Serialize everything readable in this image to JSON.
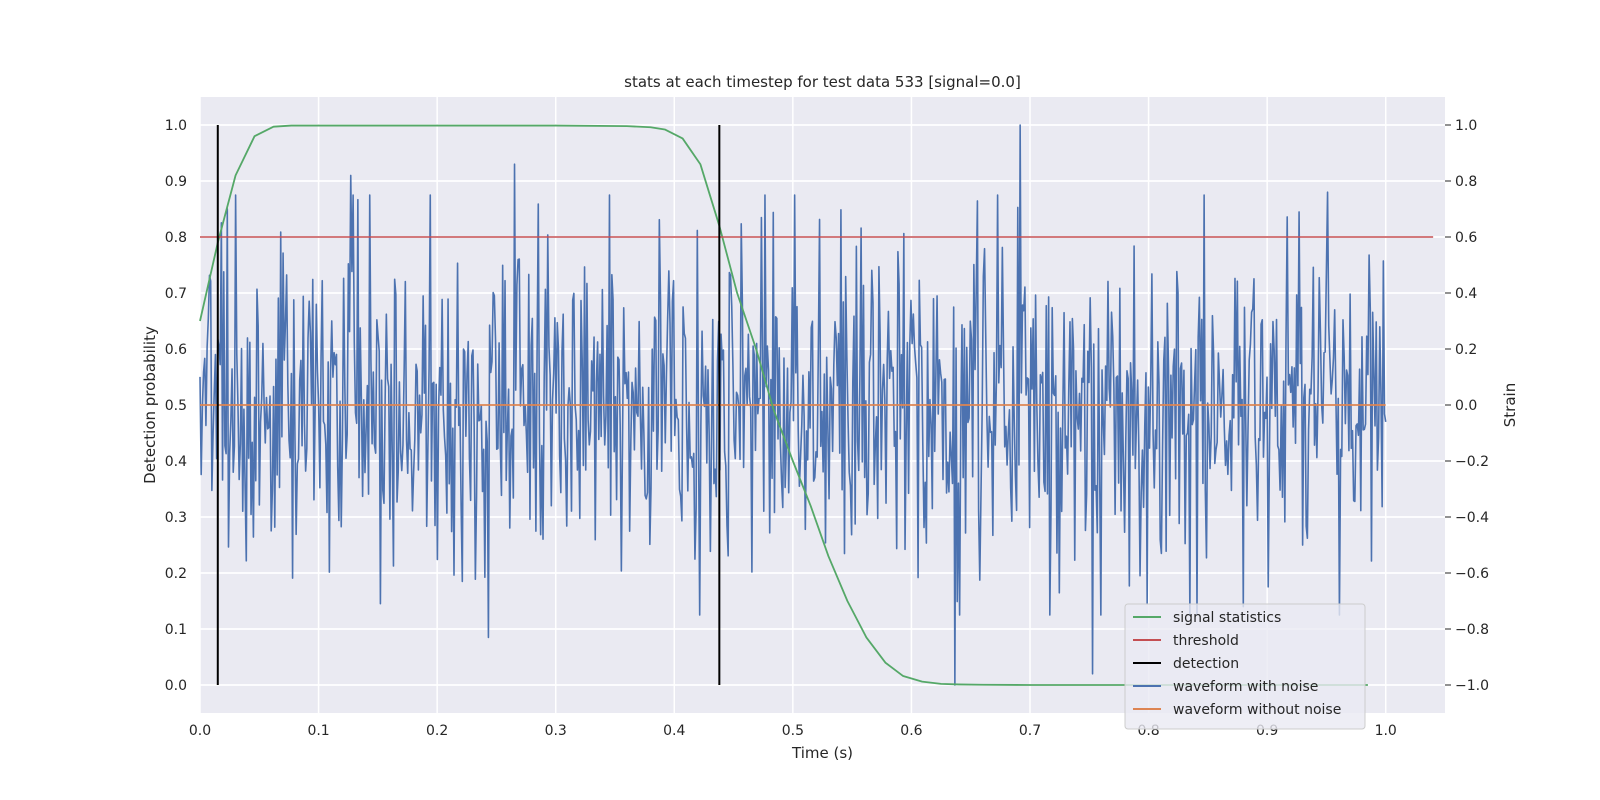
{
  "chart_data": {
    "type": "line",
    "title": "stats at each timestep for test data 533 [signal=0.0]",
    "xlabel": "Time (s)",
    "ylabel_left": "Detection probability",
    "ylabel_right": "Strain",
    "xlim": [
      0.0,
      1.05
    ],
    "ylim_left": [
      -0.05,
      1.05
    ],
    "ylim_right": [
      -1.1,
      1.1
    ],
    "x_ticks": [
      "0.0",
      "0.1",
      "0.2",
      "0.3",
      "0.4",
      "0.5",
      "0.6",
      "0.7",
      "0.8",
      "0.9",
      "1.0"
    ],
    "y_left_ticks": [
      "0.0",
      "0.1",
      "0.2",
      "0.3",
      "0.4",
      "0.5",
      "0.6",
      "0.7",
      "0.8",
      "0.9",
      "1.0"
    ],
    "y_right_ticks": [
      "−1.0",
      "−0.8",
      "−0.6",
      "−0.4",
      "−0.2",
      "0.0",
      "0.2",
      "0.4",
      "0.6",
      "0.8",
      "1.0"
    ],
    "grid": true,
    "legend_position": "lower-right",
    "series": [
      {
        "name": "signal statistics",
        "axis": "left",
        "color": "#55a868",
        "x": [
          0.0,
          0.015,
          0.03,
          0.046,
          0.062,
          0.077,
          0.1,
          0.2,
          0.3,
          0.36,
          0.38,
          0.392,
          0.407,
          0.422,
          0.438,
          0.453,
          0.469,
          0.484,
          0.5,
          0.515,
          0.53,
          0.546,
          0.562,
          0.578,
          0.593,
          0.609,
          0.625,
          0.64,
          0.66,
          0.7,
          0.8,
          0.9,
          0.985
        ],
        "y": [
          0.65,
          0.79,
          0.91,
          0.98,
          0.997,
          0.999,
          0.999,
          0.999,
          0.999,
          0.998,
          0.996,
          0.992,
          0.976,
          0.93,
          0.82,
          0.7,
          0.6,
          0.49,
          0.4,
          0.32,
          0.23,
          0.15,
          0.085,
          0.04,
          0.016,
          0.006,
          0.002,
          0.001,
          0.0005,
          0.0,
          0.0,
          0.0,
          0.0
        ]
      },
      {
        "name": "threshold",
        "axis": "left",
        "color": "#c44e52",
        "x": [
          0.0,
          1.04
        ],
        "y": [
          0.8,
          0.8
        ]
      },
      {
        "name": "detection",
        "axis": "left",
        "color": "#000000",
        "segments": [
          {
            "x": 0.015,
            "y0": 0.0,
            "y1": 1.0
          },
          {
            "x": 0.438,
            "y0": 0.0,
            "y1": 1.0
          }
        ]
      },
      {
        "name": "waveform with noise",
        "axis": "right",
        "color": "#4c72b0",
        "x_start": 0.0,
        "x_end": 1.0,
        "points": 1000,
        "amplitude": 0.3,
        "extremes": [
          {
            "x": 0.127,
            "y": 0.82
          },
          {
            "x": 0.243,
            "y": -0.83
          },
          {
            "x": 0.265,
            "y": 0.86
          },
          {
            "x": 0.637,
            "y": -1.0
          },
          {
            "x": 0.692,
            "y": 1.0
          },
          {
            "x": 0.753,
            "y": -0.96
          },
          {
            "x": 0.88,
            "y": -0.72
          },
          {
            "x": 0.951,
            "y": 0.76
          }
        ]
      },
      {
        "name": "waveform without noise",
        "axis": "right",
        "color": "#dd8452",
        "x": [
          0.0,
          1.0
        ],
        "y": [
          0.0,
          0.0
        ]
      }
    ]
  }
}
